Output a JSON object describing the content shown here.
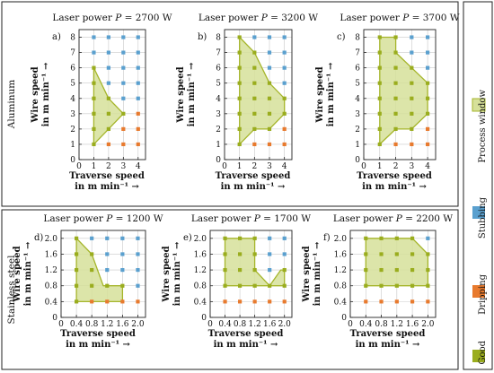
{
  "groups": [
    {
      "label": "Aluminum"
    },
    {
      "label": "Stainless steel"
    }
  ],
  "legend": [
    {
      "label": "Process window",
      "color": "#d9e0a3",
      "stroke": "#9aad1e"
    },
    {
      "label": "Stubbing",
      "color": "#5aa0cf"
    },
    {
      "label": "Dripping",
      "color": "#e87a2e"
    },
    {
      "label": "Good",
      "color": "#9aad1e"
    }
  ],
  "colors": {
    "good": "#9aad1e",
    "stubbing": "#5aa0cf",
    "dripping": "#e87a2e",
    "window_fill": "#d6e09a",
    "window_stroke": "#a5b52a",
    "grid": "#c9c9c9"
  },
  "chart_data": [
    {
      "panel": "a)",
      "type": "scatter",
      "group": "Aluminum",
      "title": "Laser power P = 2700 W",
      "title_parts": [
        "Laser power ",
        "P",
        " = 2700 W"
      ],
      "xlabel": [
        "Traverse speed",
        "in m min⁻¹ →"
      ],
      "ylabel": [
        "Wire speed",
        "in m min⁻¹ →"
      ],
      "xlim": [
        0,
        4.5
      ],
      "ylim": [
        0,
        8.5
      ],
      "xticks": [
        "0",
        "1",
        "2",
        "3",
        "4"
      ],
      "xtick_values": [
        0,
        1,
        2,
        3,
        4
      ],
      "yticks": [
        "0",
        "1",
        "2",
        "3",
        "4",
        "5",
        "6",
        "7",
        "8"
      ],
      "ytick_values": [
        0,
        1,
        2,
        3,
        4,
        5,
        6,
        7,
        8
      ],
      "grid": true,
      "points": {
        "good": [
          [
            1,
            1
          ],
          [
            1,
            2
          ],
          [
            1,
            3
          ],
          [
            1,
            4
          ],
          [
            1,
            5
          ],
          [
            1,
            6
          ],
          [
            2,
            2
          ],
          [
            2,
            3
          ],
          [
            2,
            4
          ],
          [
            3,
            3
          ]
        ],
        "stubbing": [
          [
            1,
            7
          ],
          [
            1,
            8
          ],
          [
            2,
            5
          ],
          [
            2,
            6
          ],
          [
            2,
            7
          ],
          [
            2,
            8
          ],
          [
            3,
            4
          ],
          [
            3,
            5
          ],
          [
            3,
            6
          ],
          [
            3,
            7
          ],
          [
            3,
            8
          ],
          [
            4,
            4
          ],
          [
            4,
            5
          ],
          [
            4,
            6
          ],
          [
            4,
            7
          ],
          [
            4,
            8
          ]
        ],
        "dripping": [
          [
            2,
            1
          ],
          [
            3,
            1
          ],
          [
            3,
            2
          ],
          [
            4,
            1
          ],
          [
            4,
            2
          ],
          [
            4,
            3
          ]
        ]
      },
      "process_window": [
        [
          1,
          1
        ],
        [
          1,
          6
        ],
        [
          2,
          4
        ],
        [
          3,
          3
        ],
        [
          2,
          2
        ]
      ]
    },
    {
      "panel": "b)",
      "type": "scatter",
      "group": "Aluminum",
      "title": "Laser power P = 3200 W",
      "title_parts": [
        "Laser power ",
        "P",
        " = 3200 W"
      ],
      "xlabel": [
        "Traverse speed",
        "in m min⁻¹ →"
      ],
      "ylabel": [
        "Wire speed",
        "in m min⁻¹ →"
      ],
      "xlim": [
        0,
        4.5
      ],
      "ylim": [
        0,
        8.5
      ],
      "xticks": [
        "0",
        "1",
        "2",
        "3",
        "4"
      ],
      "xtick_values": [
        0,
        1,
        2,
        3,
        4
      ],
      "yticks": [
        "0",
        "1",
        "2",
        "3",
        "4",
        "5",
        "6",
        "7",
        "8"
      ],
      "ytick_values": [
        0,
        1,
        2,
        3,
        4,
        5,
        6,
        7,
        8
      ],
      "grid": true,
      "points": {
        "good": [
          [
            1,
            1
          ],
          [
            1,
            2
          ],
          [
            1,
            3
          ],
          [
            1,
            4
          ],
          [
            1,
            5
          ],
          [
            1,
            6
          ],
          [
            1,
            7
          ],
          [
            1,
            8
          ],
          [
            2,
            2
          ],
          [
            2,
            3
          ],
          [
            2,
            4
          ],
          [
            2,
            5
          ],
          [
            2,
            6
          ],
          [
            2,
            7
          ],
          [
            3,
            2
          ],
          [
            3,
            3
          ],
          [
            3,
            4
          ],
          [
            3,
            5
          ],
          [
            4,
            3
          ],
          [
            4,
            4
          ]
        ],
        "stubbing": [
          [
            2,
            8
          ],
          [
            3,
            6
          ],
          [
            3,
            7
          ],
          [
            3,
            8
          ],
          [
            4,
            5
          ],
          [
            4,
            6
          ],
          [
            4,
            7
          ],
          [
            4,
            8
          ]
        ],
        "dripping": [
          [
            2,
            1
          ],
          [
            3,
            1
          ],
          [
            4,
            1
          ],
          [
            4,
            2
          ]
        ]
      },
      "process_window": [
        [
          1,
          1
        ],
        [
          1,
          8
        ],
        [
          2,
          7
        ],
        [
          3,
          5
        ],
        [
          4,
          4
        ],
        [
          4,
          3
        ],
        [
          3,
          2
        ],
        [
          2,
          2
        ]
      ]
    },
    {
      "panel": "c)",
      "type": "scatter",
      "group": "Aluminum",
      "title": "Laser power P = 3700 W",
      "title_parts": [
        "Laser power ",
        "P",
        " = 3700 W"
      ],
      "xlabel": [
        "Traverse speed",
        "in m min⁻¹ →"
      ],
      "ylabel": [
        "Wire speed",
        "in m min⁻¹ →"
      ],
      "xlim": [
        0,
        4.5
      ],
      "ylim": [
        0,
        8.5
      ],
      "xticks": [
        "0",
        "1",
        "2",
        "3",
        "4"
      ],
      "xtick_values": [
        0,
        1,
        2,
        3,
        4
      ],
      "yticks": [
        "0",
        "1",
        "2",
        "3",
        "4",
        "5",
        "6",
        "7",
        "8"
      ],
      "ytick_values": [
        0,
        1,
        2,
        3,
        4,
        5,
        6,
        7,
        8
      ],
      "grid": true,
      "points": {
        "good": [
          [
            1,
            1
          ],
          [
            1,
            2
          ],
          [
            1,
            3
          ],
          [
            1,
            4
          ],
          [
            1,
            5
          ],
          [
            1,
            6
          ],
          [
            1,
            7
          ],
          [
            1,
            8
          ],
          [
            2,
            2
          ],
          [
            2,
            3
          ],
          [
            2,
            4
          ],
          [
            2,
            5
          ],
          [
            2,
            6
          ],
          [
            2,
            7
          ],
          [
            2,
            8
          ],
          [
            3,
            2
          ],
          [
            3,
            3
          ],
          [
            3,
            4
          ],
          [
            3,
            5
          ],
          [
            3,
            6
          ],
          [
            4,
            3
          ],
          [
            4,
            4
          ],
          [
            4,
            5
          ]
        ],
        "stubbing": [
          [
            3,
            7
          ],
          [
            3,
            8
          ],
          [
            4,
            6
          ],
          [
            4,
            7
          ],
          [
            4,
            8
          ]
        ],
        "dripping": [
          [
            2,
            1
          ],
          [
            3,
            1
          ],
          [
            4,
            1
          ],
          [
            4,
            2
          ]
        ]
      },
      "process_window": [
        [
          1,
          1
        ],
        [
          1,
          8
        ],
        [
          2,
          8
        ],
        [
          2,
          7
        ],
        [
          4,
          5
        ],
        [
          4,
          3
        ],
        [
          3,
          2
        ],
        [
          2,
          2
        ]
      ]
    },
    {
      "panel": "d)",
      "type": "scatter",
      "group": "Stainless steel",
      "title": "Laser power P = 1200 W",
      "title_parts": [
        "Laser power ",
        "P",
        " = 1200 W"
      ],
      "xlabel": [
        "Traverse speed",
        "in m min⁻¹ →"
      ],
      "ylabel": [
        "Wire speed",
        "in m min⁻¹ →"
      ],
      "xlim": [
        0,
        2.2
      ],
      "ylim": [
        0,
        2.2
      ],
      "xticks": [
        "0",
        "0.4",
        "0.8",
        "1.2",
        "1.6",
        "2.0"
      ],
      "xtick_values": [
        0,
        0.4,
        0.8,
        1.2,
        1.6,
        2.0
      ],
      "yticks": [
        "0",
        "0.4",
        "0.8",
        "1.2",
        "1.6",
        "2.0"
      ],
      "ytick_values": [
        0,
        0.4,
        0.8,
        1.2,
        1.6,
        2.0
      ],
      "grid": true,
      "points": {
        "good": [
          [
            0.4,
            0.4
          ],
          [
            0.4,
            0.8
          ],
          [
            0.4,
            1.2
          ],
          [
            0.4,
            1.6
          ],
          [
            0.4,
            2.0
          ],
          [
            0.8,
            0.8
          ],
          [
            0.8,
            1.2
          ],
          [
            0.8,
            1.6
          ],
          [
            1.2,
            0.8
          ],
          [
            1.6,
            0.8
          ]
        ],
        "stubbing": [
          [
            0.8,
            2.0
          ],
          [
            1.2,
            1.2
          ],
          [
            1.2,
            1.6
          ],
          [
            1.2,
            2.0
          ],
          [
            1.6,
            1.2
          ],
          [
            1.6,
            1.6
          ],
          [
            1.6,
            2.0
          ],
          [
            2.0,
            0.8
          ],
          [
            2.0,
            1.2
          ],
          [
            2.0,
            1.6
          ],
          [
            2.0,
            2.0
          ]
        ],
        "dripping": [
          [
            0.8,
            0.4
          ],
          [
            1.2,
            0.4
          ],
          [
            1.6,
            0.4
          ],
          [
            2.0,
            0.4
          ]
        ]
      },
      "process_window": [
        [
          0.4,
          0.4
        ],
        [
          0.4,
          2.0
        ],
        [
          0.8,
          1.6
        ],
        [
          1.1,
          0.8
        ],
        [
          1.6,
          0.8
        ],
        [
          1.6,
          0.4
        ]
      ]
    },
    {
      "panel": "e)",
      "type": "scatter",
      "group": "Stainless steel",
      "title": "Laser power P = 1700 W",
      "title_parts": [
        "Laser power ",
        "P",
        " = 1700 W"
      ],
      "xlabel": [
        "Traverse speed",
        "in m min⁻¹ →"
      ],
      "ylabel": [
        "Wire speed",
        "in m min⁻¹ →"
      ],
      "xlim": [
        0,
        2.2
      ],
      "ylim": [
        0,
        2.2
      ],
      "xticks": [
        "0",
        "0.4",
        "0.8",
        "1.2",
        "1.6",
        "2.0"
      ],
      "xtick_values": [
        0,
        0.4,
        0.8,
        1.2,
        1.6,
        2.0
      ],
      "yticks": [
        "0",
        "0.4",
        "0.8",
        "1.2",
        "1.6",
        "2.0"
      ],
      "ytick_values": [
        0,
        0.4,
        0.8,
        1.2,
        1.6,
        2.0
      ],
      "grid": true,
      "points": {
        "good": [
          [
            0.4,
            0.8
          ],
          [
            0.4,
            1.2
          ],
          [
            0.4,
            1.6
          ],
          [
            0.4,
            2.0
          ],
          [
            0.8,
            0.8
          ],
          [
            0.8,
            1.2
          ],
          [
            0.8,
            1.6
          ],
          [
            0.8,
            2.0
          ],
          [
            1.2,
            0.8
          ],
          [
            1.2,
            1.2
          ],
          [
            1.2,
            1.6
          ],
          [
            1.2,
            2.0
          ],
          [
            1.6,
            0.8
          ],
          [
            2.0,
            0.8
          ],
          [
            2.0,
            1.2
          ]
        ],
        "stubbing": [
          [
            1.6,
            1.2
          ],
          [
            1.6,
            1.6
          ],
          [
            1.6,
            2.0
          ],
          [
            2.0,
            1.6
          ],
          [
            2.0,
            2.0
          ]
        ],
        "dripping": [
          [
            0.4,
            0.4
          ],
          [
            0.8,
            0.4
          ],
          [
            1.2,
            0.4
          ],
          [
            1.6,
            0.4
          ],
          [
            2.0,
            0.4
          ]
        ]
      },
      "process_window": [
        [
          0.4,
          0.8
        ],
        [
          0.4,
          2.0
        ],
        [
          1.2,
          2.0
        ],
        [
          1.2,
          1.2
        ],
        [
          1.6,
          0.8
        ],
        [
          1.9,
          1.2
        ],
        [
          2.0,
          1.2
        ],
        [
          2.0,
          0.8
        ]
      ]
    },
    {
      "panel": "f)",
      "type": "scatter",
      "group": "Stainless steel",
      "title": "Laser power P = 2200 W",
      "title_parts": [
        "Laser power ",
        "P",
        " = 2200 W"
      ],
      "xlabel": [
        "Traverse speed",
        "in m min⁻¹ →"
      ],
      "ylabel": [
        "Wire speed",
        "in m min⁻¹ →"
      ],
      "xlim": [
        0,
        2.2
      ],
      "ylim": [
        0,
        2.2
      ],
      "xticks": [
        "0",
        "0.4",
        "0.8",
        "1.2",
        "1.6",
        "2.0"
      ],
      "xtick_values": [
        0,
        0.4,
        0.8,
        1.2,
        1.6,
        2.0
      ],
      "yticks": [
        "0",
        "0.4",
        "0.8",
        "1.2",
        "1.6",
        "2.0"
      ],
      "ytick_values": [
        0,
        0.4,
        0.8,
        1.2,
        1.6,
        2.0
      ],
      "grid": true,
      "points": {
        "good": [
          [
            0.4,
            0.8
          ],
          [
            0.4,
            1.2
          ],
          [
            0.4,
            1.6
          ],
          [
            0.4,
            2.0
          ],
          [
            0.8,
            0.8
          ],
          [
            0.8,
            1.2
          ],
          [
            0.8,
            1.6
          ],
          [
            0.8,
            2.0
          ],
          [
            1.2,
            0.8
          ],
          [
            1.2,
            1.2
          ],
          [
            1.2,
            1.6
          ],
          [
            1.2,
            2.0
          ],
          [
            1.6,
            0.8
          ],
          [
            1.6,
            1.2
          ],
          [
            1.6,
            1.6
          ],
          [
            1.6,
            2.0
          ],
          [
            2.0,
            0.8
          ],
          [
            2.0,
            1.2
          ],
          [
            2.0,
            1.6
          ]
        ],
        "stubbing": [
          [
            2.0,
            2.0
          ]
        ],
        "dripping": [
          [
            0.4,
            0.4
          ],
          [
            0.8,
            0.4
          ],
          [
            1.2,
            0.4
          ],
          [
            1.6,
            0.4
          ],
          [
            2.0,
            0.4
          ]
        ]
      },
      "process_window": [
        [
          0.4,
          0.8
        ],
        [
          0.4,
          2.0
        ],
        [
          1.6,
          2.0
        ],
        [
          2.0,
          1.6
        ],
        [
          2.0,
          0.8
        ]
      ]
    }
  ]
}
